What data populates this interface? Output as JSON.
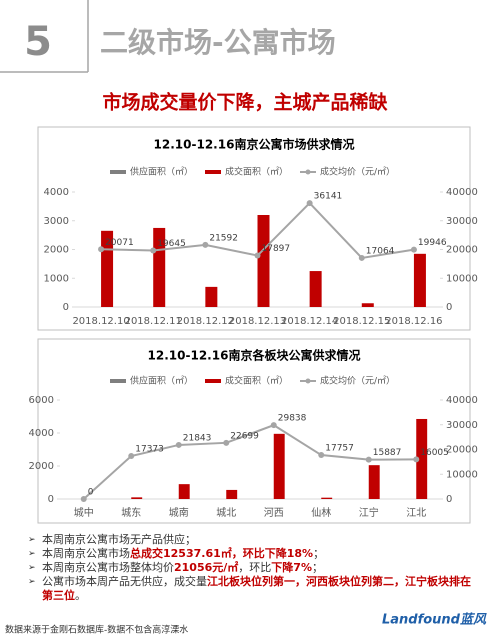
{
  "header": {
    "number": "5",
    "title": "二级市场-公寓市场"
  },
  "headline": "市场成交量价下降，主城产品稀缺",
  "chart_data": [
    {
      "type": "bar",
      "title": "12.10-12.16南京公寓市场供求情况",
      "categories": [
        "2018.12.10",
        "2018.12.11",
        "2018.12.12",
        "2018.12.13",
        "2018.12.14",
        "2018.12.15",
        "2018.12.16"
      ],
      "series": [
        {
          "name": "供应面积（㎡）",
          "color": "#7f7f7f",
          "values": [
            0,
            0,
            0,
            0,
            0,
            0,
            0
          ]
        },
        {
          "name": "成交面积（㎡）",
          "color": "#c00000",
          "values": [
            2650,
            2750,
            700,
            3200,
            1250,
            130,
            1850
          ]
        },
        {
          "name": "成交均价（元/㎡）",
          "color": "#a5a5a5",
          "type": "line",
          "axis": "y2",
          "values": [
            20071,
            19645,
            21592,
            17897,
            36141,
            17064,
            19946
          ]
        }
      ],
      "ylim": [
        0,
        4000
      ],
      "yticks": [
        0,
        1000,
        2000,
        3000,
        4000
      ],
      "y2lim": [
        0,
        40000
      ],
      "y2ticks": [
        0,
        10000,
        20000,
        30000,
        40000
      ],
      "legend": "top"
    },
    {
      "type": "bar",
      "title": "12.10-12.16南京各板块公寓供求情况",
      "categories": [
        "城中",
        "城东",
        "城南",
        "城北",
        "河西",
        "仙林",
        "江宁",
        "江北"
      ],
      "series": [
        {
          "name": "供应面积（㎡）",
          "color": "#7f7f7f",
          "values": [
            0,
            0,
            0,
            0,
            0,
            0,
            0,
            0
          ]
        },
        {
          "name": "成交面积（㎡）",
          "color": "#c00000",
          "values": [
            0,
            100,
            900,
            550,
            3950,
            80,
            2050,
            4850
          ]
        },
        {
          "name": "成交均价（元/㎡）",
          "color": "#a5a5a5",
          "type": "line",
          "axis": "y2",
          "values": [
            0,
            17373,
            21843,
            22699,
            29838,
            17757,
            15887,
            16005
          ]
        }
      ],
      "ylim": [
        0,
        6000
      ],
      "yticks": [
        0,
        2000,
        4000,
        6000
      ],
      "y2lim": [
        0,
        40000
      ],
      "y2ticks": [
        0,
        10000,
        20000,
        30000,
        40000
      ],
      "legend": "top"
    }
  ],
  "bullets": [
    [
      {
        "text": "本周南京公寓市场无产品供应；"
      }
    ],
    [
      {
        "text": "本周南京公寓市场"
      },
      {
        "text": "总成交12537.61㎡，环比下降18%",
        "emphasis": true
      },
      {
        "text": "；"
      }
    ],
    [
      {
        "text": "本周南京公寓市场整体均价"
      },
      {
        "text": "21056元/㎡",
        "emphasis": true
      },
      {
        "text": "，环比"
      },
      {
        "text": "下降7%",
        "emphasis": true
      },
      {
        "text": "；"
      }
    ],
    [
      {
        "text": "公寓市场本周产品无供应，成交量"
      },
      {
        "text": "江北板块位列第一，河西板块位列第二，江宁板块排在第三位",
        "emphasis": true
      },
      {
        "text": "。"
      }
    ]
  ],
  "footer": {
    "source": "数据来源于金刚石数据库-数据不包含高淳溧水",
    "logo": "Landfound蓝风"
  }
}
